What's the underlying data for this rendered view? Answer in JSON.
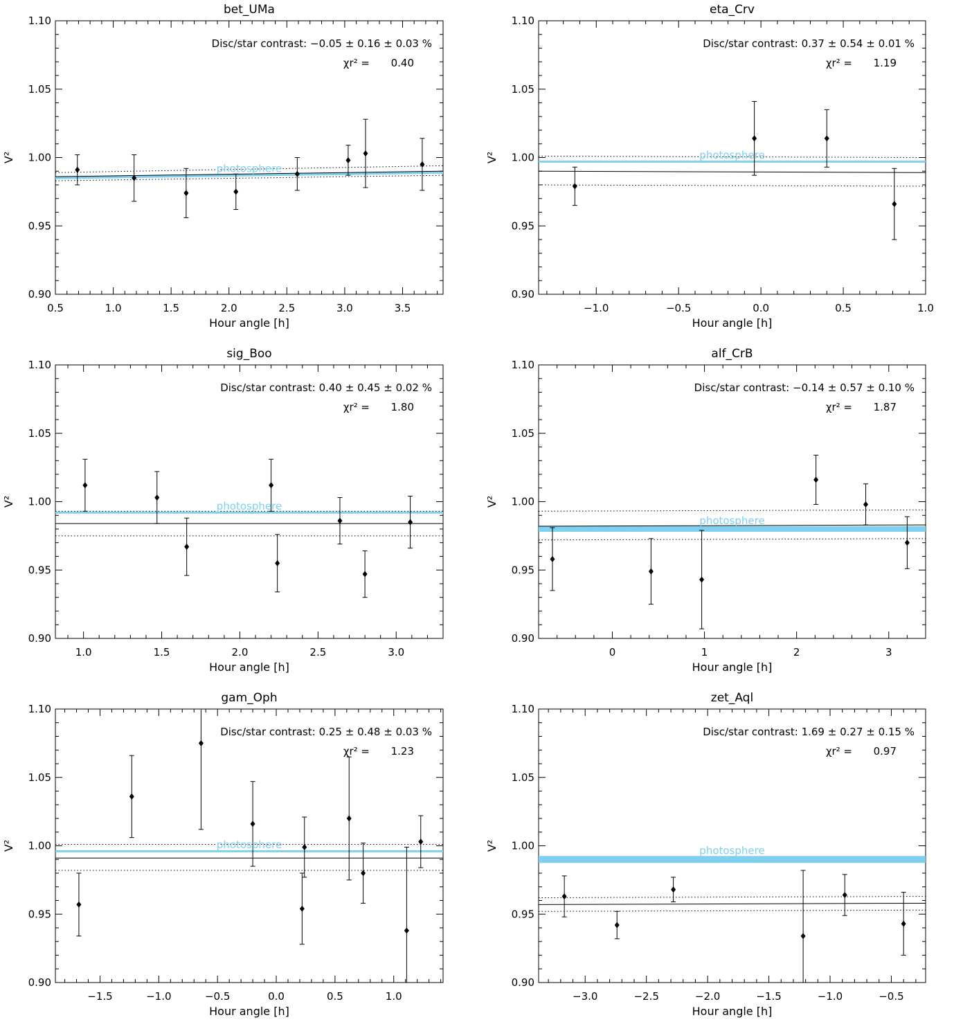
{
  "colors": {
    "model": "#000000",
    "photosphere": "#7fcfef",
    "points": "#000000"
  },
  "chart_data": [
    {
      "type": "scatter",
      "title": "bet_UMa",
      "xlabel": "Hour angle [h]",
      "ylabel": "V²",
      "xlim": [
        0.5,
        3.85
      ],
      "ylim": [
        0.9,
        1.1
      ],
      "xticks": [
        0.5,
        1.0,
        1.5,
        2.0,
        2.5,
        3.0,
        3.5
      ],
      "xtick_labels": [
        "0.5",
        "1.0",
        "1.5",
        "2.0",
        "2.5",
        "3.0",
        "3.5"
      ],
      "yticks": [
        0.9,
        0.95,
        1.0,
        1.05,
        1.1
      ],
      "ytick_labels": [
        "0.90",
        "0.95",
        "1.00",
        "1.05",
        "1.10"
      ],
      "contrast_text": "Disc/star contrast: −0.05 ± 0.16 ± 0.03 %",
      "chi2_label": "χr² =",
      "chi2_value": "0.40",
      "photosphere_label": "photosphere",
      "photosphere": {
        "y0": 0.985,
        "y1": 0.989,
        "width": 3
      },
      "fit": {
        "y0": 0.986,
        "y1": 0.99
      },
      "band": {
        "upper0": 0.989,
        "upper1": 0.994,
        "lower0": 0.983,
        "lower1": 0.987
      },
      "points": [
        {
          "x": 0.69,
          "y": 0.991,
          "err": 0.011
        },
        {
          "x": 1.18,
          "y": 0.985,
          "err": 0.017
        },
        {
          "x": 1.63,
          "y": 0.974,
          "err": 0.018
        },
        {
          "x": 2.06,
          "y": 0.975,
          "err": 0.013
        },
        {
          "x": 2.59,
          "y": 0.988,
          "err": 0.012
        },
        {
          "x": 3.03,
          "y": 0.998,
          "err": 0.011
        },
        {
          "x": 3.18,
          "y": 1.003,
          "err": 0.025
        },
        {
          "x": 3.67,
          "y": 0.995,
          "err": 0.019
        }
      ]
    },
    {
      "type": "scatter",
      "title": "eta_Crv",
      "xlabel": "Hour angle [h]",
      "ylabel": "V²",
      "xlim": [
        -1.35,
        1.0
      ],
      "ylim": [
        0.9,
        1.1
      ],
      "xticks": [
        -1.0,
        -0.5,
        0.0,
        0.5,
        1.0
      ],
      "xtick_labels": [
        "−1.0",
        "−0.5",
        "0.0",
        "0.5",
        "1.0"
      ],
      "yticks": [
        0.9,
        0.95,
        1.0,
        1.05,
        1.1
      ],
      "ytick_labels": [
        "0.90",
        "0.95",
        "1.00",
        "1.05",
        "1.10"
      ],
      "contrast_text": "Disc/star contrast: 0.37 ± 0.54 ± 0.01 %",
      "chi2_label": "χr² =",
      "chi2_value": "1.19",
      "photosphere_label": "photosphere",
      "photosphere": {
        "y0": 0.997,
        "y1": 0.997,
        "width": 3
      },
      "fit": {
        "y0": 0.99,
        "y1": 0.989
      },
      "band": {
        "upper0": 1.001,
        "upper1": 1.0,
        "lower0": 0.98,
        "lower1": 0.979
      },
      "points": [
        {
          "x": -1.13,
          "y": 0.979,
          "err": 0.014
        },
        {
          "x": -0.04,
          "y": 1.014,
          "err": 0.027
        },
        {
          "x": 0.4,
          "y": 1.014,
          "err": 0.021
        },
        {
          "x": 0.81,
          "y": 0.966,
          "err": 0.026
        }
      ]
    },
    {
      "type": "scatter",
      "title": "sig_Boo",
      "xlabel": "Hour angle [h]",
      "ylabel": "V²",
      "xlim": [
        0.82,
        3.3
      ],
      "ylim": [
        0.9,
        1.1
      ],
      "xticks": [
        1.0,
        1.5,
        2.0,
        2.5,
        3.0
      ],
      "xtick_labels": [
        "1.0",
        "1.5",
        "2.0",
        "2.5",
        "3.0"
      ],
      "yticks": [
        0.9,
        0.95,
        1.0,
        1.05,
        1.1
      ],
      "ytick_labels": [
        "0.90",
        "0.95",
        "1.00",
        "1.05",
        "1.10"
      ],
      "contrast_text": "Disc/star contrast: 0.40 ± 0.45 ± 0.02 %",
      "chi2_label": "χr² =",
      "chi2_value": "1.80",
      "photosphere_label": "photosphere",
      "photosphere": {
        "y0": 0.992,
        "y1": 0.992,
        "width": 3
      },
      "fit": {
        "y0": 0.984,
        "y1": 0.984
      },
      "band": {
        "upper0": 0.993,
        "upper1": 0.993,
        "lower0": 0.975,
        "lower1": 0.975
      },
      "points": [
        {
          "x": 1.01,
          "y": 1.012,
          "err": 0.019
        },
        {
          "x": 1.47,
          "y": 1.003,
          "err": 0.019
        },
        {
          "x": 1.66,
          "y": 0.967,
          "err": 0.021
        },
        {
          "x": 2.2,
          "y": 1.012,
          "err": 0.019
        },
        {
          "x": 2.24,
          "y": 0.955,
          "err": 0.021
        },
        {
          "x": 2.64,
          "y": 0.986,
          "err": 0.017
        },
        {
          "x": 2.8,
          "y": 0.947,
          "err": 0.017
        },
        {
          "x": 3.09,
          "y": 0.985,
          "err": 0.019
        }
      ]
    },
    {
      "type": "scatter",
      "title": "alf_CrB",
      "xlabel": "Hour angle [h]",
      "ylabel": "V²",
      "xlim": [
        -0.8,
        3.4
      ],
      "ylim": [
        0.9,
        1.1
      ],
      "xticks": [
        0,
        1,
        2,
        3
      ],
      "xtick_labels": [
        "0",
        "1",
        "2",
        "3"
      ],
      "yticks": [
        0.9,
        0.95,
        1.0,
        1.05,
        1.1
      ],
      "ytick_labels": [
        "0.90",
        "0.95",
        "1.00",
        "1.05",
        "1.10"
      ],
      "contrast_text": "Disc/star contrast: −0.14 ± 0.57 ± 0.10 %",
      "chi2_label": "χr² =",
      "chi2_value": "1.87",
      "photosphere_label": "photosphere",
      "photosphere": {
        "y0": 0.98,
        "y1": 0.98,
        "width": 8
      },
      "fit": {
        "y0": 0.982,
        "y1": 0.983
      },
      "band": {
        "upper0": 0.993,
        "upper1": 0.994,
        "lower0": 0.972,
        "lower1": 0.973
      },
      "points": [
        {
          "x": -0.65,
          "y": 0.958,
          "err": 0.023
        },
        {
          "x": 0.42,
          "y": 0.949,
          "err": 0.024
        },
        {
          "x": 0.97,
          "y": 0.943,
          "err": 0.036
        },
        {
          "x": 2.21,
          "y": 1.016,
          "err": 0.018
        },
        {
          "x": 2.75,
          "y": 0.998,
          "err": 0.015
        },
        {
          "x": 3.2,
          "y": 0.97,
          "err": 0.019
        }
      ]
    },
    {
      "type": "scatter",
      "title": "gam_Oph",
      "xlabel": "Hour angle [h]",
      "ylabel": "V²",
      "xlim": [
        -1.88,
        1.42
      ],
      "ylim": [
        0.9,
        1.1
      ],
      "xticks": [
        -1.5,
        -1.0,
        -0.5,
        0.0,
        0.5,
        1.0
      ],
      "xtick_labels": [
        "−1.5",
        "−1.0",
        "−0.5",
        "0.0",
        "0.5",
        "1.0"
      ],
      "yticks": [
        0.9,
        0.95,
        1.0,
        1.05,
        1.1
      ],
      "ytick_labels": [
        "0.90",
        "0.95",
        "1.00",
        "1.05",
        "1.10"
      ],
      "contrast_text": "Disc/star contrast: 0.25 ± 0.48 ± 0.03 %",
      "chi2_label": "χr² =",
      "chi2_value": "1.23",
      "photosphere_label": "photosphere",
      "photosphere": {
        "y0": 0.996,
        "y1": 0.996,
        "width": 3
      },
      "fit": {
        "y0": 0.991,
        "y1": 0.991
      },
      "band": {
        "upper0": 1.001,
        "upper1": 1.001,
        "lower0": 0.982,
        "lower1": 0.982
      },
      "points": [
        {
          "x": -1.68,
          "y": 0.957,
          "err": 0.023
        },
        {
          "x": -1.23,
          "y": 1.036,
          "err": 0.03
        },
        {
          "x": -0.64,
          "y": 1.075,
          "err": 0.063
        },
        {
          "x": -0.2,
          "y": 1.016,
          "err": 0.031
        },
        {
          "x": 0.22,
          "y": 0.954,
          "err": 0.026
        },
        {
          "x": 0.24,
          "y": 0.999,
          "err": 0.022
        },
        {
          "x": 0.62,
          "y": 1.02,
          "err": 0.045
        },
        {
          "x": 0.74,
          "y": 0.98,
          "err": 0.022
        },
        {
          "x": 1.11,
          "y": 0.938,
          "err": 0.061
        },
        {
          "x": 1.23,
          "y": 1.003,
          "err": 0.019
        }
      ]
    },
    {
      "type": "scatter",
      "title": "zet_Aql",
      "xlabel": "Hour angle [h]",
      "ylabel": "V²",
      "xlim": [
        -3.38,
        -0.22
      ],
      "ylim": [
        0.9,
        1.1
      ],
      "xticks": [
        -3.0,
        -2.5,
        -2.0,
        -1.5,
        -1.0,
        -0.5
      ],
      "xtick_labels": [
        "−3.0",
        "−2.5",
        "−2.0",
        "−1.5",
        "−1.0",
        "−0.5"
      ],
      "yticks": [
        0.9,
        0.95,
        1.0,
        1.05,
        1.1
      ],
      "ytick_labels": [
        "0.90",
        "0.95",
        "1.00",
        "1.05",
        "1.10"
      ],
      "contrast_text": "Disc/star contrast: 1.69 ± 0.27 ± 0.15 %",
      "chi2_label": "χr² =",
      "chi2_value": "0.97",
      "photosphere_label": "photosphere",
      "photosphere": {
        "y0": 0.99,
        "y1": 0.99,
        "width": 10
      },
      "fit": {
        "y0": 0.957,
        "y1": 0.958
      },
      "band": {
        "upper0": 0.962,
        "upper1": 0.963,
        "lower0": 0.952,
        "lower1": 0.953
      },
      "points": [
        {
          "x": -3.17,
          "y": 0.963,
          "err": 0.015
        },
        {
          "x": -2.74,
          "y": 0.942,
          "err": 0.01
        },
        {
          "x": -2.28,
          "y": 0.968,
          "err": 0.009
        },
        {
          "x": -1.22,
          "y": 0.934,
          "err": 0.048
        },
        {
          "x": -0.88,
          "y": 0.964,
          "err": 0.015
        },
        {
          "x": -0.4,
          "y": 0.943,
          "err": 0.023
        }
      ]
    }
  ]
}
